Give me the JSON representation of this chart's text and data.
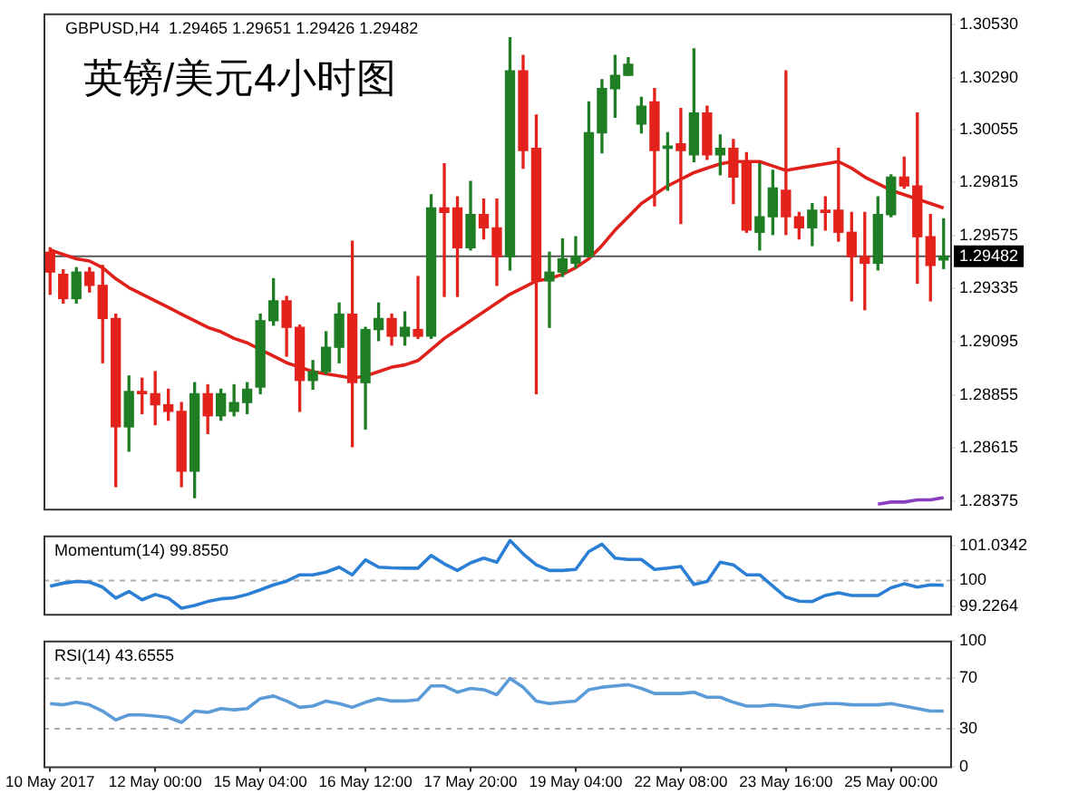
{
  "chart_data": [
    {
      "type": "candlestick",
      "title": "英镑/美元4小时图",
      "subtitle": "GBPUSD,H4  1.29465 1.29651 1.29426 1.29482",
      "tick_labels": "y",
      "ohlc": [
        [
          1.295,
          1.2952,
          1.2931,
          1.2941
        ],
        [
          1.294,
          1.2942,
          1.2927,
          1.2929
        ],
        [
          1.2929,
          1.2943,
          1.2927,
          1.2941
        ],
        [
          1.2941,
          1.2943,
          1.2932,
          1.2935
        ],
        [
          1.2935,
          1.2944,
          1.29,
          1.292
        ],
        [
          1.292,
          1.2922,
          1.2844,
          1.2871
        ],
        [
          1.2871,
          1.2894,
          1.286,
          1.2887
        ],
        [
          1.2887,
          1.2893,
          1.2877,
          1.2886
        ],
        [
          1.2886,
          1.2896,
          1.2872,
          1.2881
        ],
        [
          1.2881,
          1.2888,
          1.2874,
          1.2878
        ],
        [
          1.2878,
          1.2882,
          1.2844,
          1.2851
        ],
        [
          1.2851,
          1.2891,
          1.2839,
          1.2886
        ],
        [
          1.2886,
          1.289,
          1.2868,
          1.2876
        ],
        [
          1.2876,
          1.2888,
          1.2874,
          1.2886
        ],
        [
          1.2878,
          1.289,
          1.2876,
          1.2882
        ],
        [
          1.2882,
          1.2891,
          1.2877,
          1.2888
        ],
        [
          1.2889,
          1.2922,
          1.2886,
          1.2919
        ],
        [
          1.2919,
          1.2938,
          1.2917,
          1.2928
        ],
        [
          1.2928,
          1.293,
          1.2903,
          1.2916
        ],
        [
          1.2916,
          1.2917,
          1.2878,
          1.2892
        ],
        [
          1.2892,
          1.2901,
          1.2888,
          1.2896
        ],
        [
          1.2896,
          1.2914,
          1.2895,
          1.2907
        ],
        [
          1.2907,
          1.2927,
          1.29,
          1.2922
        ],
        [
          1.2922,
          1.2955,
          1.2862,
          1.2891
        ],
        [
          1.2891,
          1.2916,
          1.287,
          1.2915
        ],
        [
          1.2915,
          1.2927,
          1.291,
          1.292
        ],
        [
          1.292,
          1.2922,
          1.2908,
          1.2912
        ],
        [
          1.2912,
          1.2923,
          1.2908,
          1.2916
        ],
        [
          1.2915,
          1.2939,
          1.2911,
          1.2912
        ],
        [
          1.2912,
          1.2976,
          1.2911,
          1.297
        ],
        [
          1.297,
          1.299,
          1.293,
          1.2968
        ],
        [
          1.297,
          1.2975,
          1.293,
          1.2952
        ],
        [
          1.2952,
          1.2982,
          1.2951,
          1.2967
        ],
        [
          1.2967,
          1.2974,
          1.2956,
          1.2961
        ],
        [
          1.2961,
          1.2974,
          1.2935,
          1.2948
        ],
        [
          1.2948,
          1.3047,
          1.2942,
          1.3032
        ],
        [
          1.3032,
          1.3039,
          1.2988,
          1.2996
        ],
        [
          1.2997,
          1.3012,
          1.2886,
          1.2937
        ],
        [
          1.2937,
          1.295,
          1.2916,
          1.2941
        ],
        [
          1.2941,
          1.2956,
          1.2939,
          1.2947
        ],
        [
          1.2945,
          1.2957,
          1.2943,
          1.2948
        ],
        [
          1.2948,
          1.3018,
          1.2948,
          1.3004
        ],
        [
          1.3004,
          1.3028,
          1.2995,
          1.3024
        ],
        [
          1.3024,
          1.3039,
          1.3011,
          1.303
        ],
        [
          1.303,
          1.3038,
          1.303,
          1.3035
        ],
        [
          1.3008,
          1.302,
          1.3004,
          1.3016
        ],
        [
          1.3018,
          1.3024,
          1.2971,
          1.2996
        ],
        [
          1.2997,
          1.3004,
          1.2978,
          1.2998
        ],
        [
          1.2999,
          1.3015,
          1.2963,
          1.2996
        ],
        [
          1.2994,
          1.3042,
          1.2991,
          1.3013
        ],
        [
          1.3013,
          1.3016,
          1.2992,
          1.2994
        ],
        [
          1.2994,
          1.3003,
          1.2985,
          1.2997
        ],
        [
          1.2997,
          1.3001,
          1.2972,
          1.2984
        ],
        [
          1.299,
          1.2995,
          1.2959,
          1.296
        ],
        [
          1.2959,
          1.299,
          1.2951,
          1.2966
        ],
        [
          1.2966,
          1.2987,
          1.2958,
          1.2979
        ],
        [
          1.2978,
          1.3032,
          1.2958,
          1.2966
        ],
        [
          1.2966,
          1.2968,
          1.2956,
          1.2961
        ],
        [
          1.2961,
          1.2972,
          1.2953,
          1.2969
        ],
        [
          1.2969,
          1.2975,
          1.296,
          1.2968
        ],
        [
          1.2969,
          1.2997,
          1.2955,
          1.2959
        ],
        [
          1.2959,
          1.2968,
          1.2928,
          1.2948
        ],
        [
          1.2948,
          1.2968,
          1.2924,
          1.2945
        ],
        [
          1.2945,
          1.2975,
          1.2942,
          1.2967
        ],
        [
          1.2967,
          1.2985,
          1.2966,
          1.2984
        ],
        [
          1.2984,
          1.2993,
          1.2979,
          1.298
        ],
        [
          1.298,
          1.3013,
          1.2936,
          1.2957
        ],
        [
          1.2957,
          1.2967,
          1.2928,
          1.2944
        ],
        [
          1.29465,
          1.29651,
          1.29426,
          1.29482
        ]
      ],
      "colors": [
        "#e3221b",
        "#e3221b",
        "#1f7d24",
        "#e3221b",
        "#e3221b",
        "#e3221b",
        "#1f7d24",
        "#e3221b",
        "#e3221b",
        "#e3221b",
        "#e3221b",
        "#1f7d24",
        "#e3221b",
        "#1f7d24",
        "#1f7d24",
        "#1f7d24",
        "#1f7d24",
        "#1f7d24",
        "#e3221b",
        "#e3221b",
        "#1f7d24",
        "#1f7d24",
        "#1f7d24",
        "#e3221b",
        "#1f7d24",
        "#1f7d24",
        "#e3221b",
        "#1f7d24",
        "#e3221b",
        "#1f7d24",
        "#e3221b",
        "#e3221b",
        "#1f7d24",
        "#e3221b",
        "#e3221b",
        "#1f7d24",
        "#e3221b",
        "#e3221b",
        "#1f7d24",
        "#1f7d24",
        "#1f7d24",
        "#1f7d24",
        "#1f7d24",
        "#1f7d24",
        "#1f7d24",
        "#1f7d24",
        "#e3221b",
        "#1f7d24",
        "#e3221b",
        "#1f7d24",
        "#e3221b",
        "#1f7d24",
        "#e3221b",
        "#e3221b",
        "#1f7d24",
        "#1f7d24",
        "#e3221b",
        "#e3221b",
        "#1f7d24",
        "#e3221b",
        "#e3221b",
        "#e3221b",
        "#e3221b",
        "#1f7d24",
        "#1f7d24",
        "#e3221b",
        "#e3221b",
        "#e3221b",
        "#1f7d24"
      ],
      "series": [
        {
          "type": "line",
          "color": "#e0201a",
          "values": [
            1.2951,
            1.2949,
            1.2947,
            1.2946,
            1.2943,
            1.2938,
            1.2934,
            1.2931,
            1.2928,
            1.2925,
            1.2922,
            1.2919,
            1.2916,
            1.2914,
            1.2911,
            1.2909,
            1.2906,
            1.2903,
            1.29,
            1.2898,
            1.2896,
            1.2895,
            1.2894,
            1.2893,
            1.2894,
            1.2896,
            1.2898,
            1.2899,
            1.2901,
            1.2906,
            1.2911,
            1.2915,
            1.2919,
            1.2923,
            1.2927,
            1.2931,
            1.2934,
            1.2937,
            1.2938,
            1.294,
            1.2943,
            1.2947,
            1.2953,
            1.296,
            1.2966,
            1.2972,
            1.2976,
            1.298,
            1.2983,
            1.2986,
            1.2988,
            1.299,
            1.2991,
            1.2991,
            1.2991,
            1.2989,
            1.2987,
            1.2988,
            1.2989,
            1.299,
            1.2991,
            1.2988,
            1.2984,
            1.2981,
            1.2978,
            1.2976,
            1.2974,
            1.2972,
            1.297
          ]
        },
        {
          "type": "line",
          "color": "#8a3fc0",
          "values": [
            null,
            null,
            null,
            null,
            null,
            null,
            null,
            null,
            null,
            null,
            null,
            null,
            null,
            null,
            null,
            null,
            null,
            null,
            null,
            null,
            null,
            null,
            null,
            null,
            null,
            null,
            null,
            null,
            null,
            null,
            null,
            null,
            null,
            null,
            null,
            null,
            null,
            null,
            null,
            null,
            null,
            null,
            null,
            null,
            null,
            null,
            null,
            null,
            null,
            null,
            null,
            null,
            null,
            null,
            null,
            null,
            null,
            null,
            null,
            null,
            null,
            null,
            null,
            1.2836,
            1.2837,
            1.2837,
            1.2838,
            1.2838,
            1.2839
          ]
        }
      ],
      "ylim": [
        1.2834,
        1.3058
      ],
      "yticks": [
        {
          "value": 1.3053,
          "label": "1.30530"
        },
        {
          "value": 1.3029,
          "label": "1.30290"
        },
        1.30055,
        1.29815,
        1.29575,
        1.29335,
        1.29095,
        1.28855,
        1.28615,
        1.28375
      ],
      "ref_lines": [
        {
          "axis": "y",
          "value": 1.29482,
          "label": "1.29482",
          "color": "#555555"
        }
      ]
    },
    {
      "type": "line",
      "title": "Momentum(14) 99.8550",
      "tick_labels": "y",
      "color": "#2b7fd4",
      "values": [
        99.83,
        99.92,
        99.97,
        99.95,
        99.8,
        99.47,
        99.67,
        99.42,
        99.58,
        99.47,
        99.17,
        99.25,
        99.37,
        99.45,
        99.48,
        99.58,
        99.72,
        99.87,
        99.98,
        100.17,
        100.17,
        100.25,
        100.4,
        100.17,
        100.62,
        100.4,
        100.38,
        100.37,
        100.37,
        100.75,
        100.5,
        100.3,
        100.53,
        100.67,
        100.55,
        101.2,
        100.8,
        100.47,
        100.3,
        100.3,
        100.33,
        100.87,
        101.09,
        100.67,
        100.63,
        100.63,
        100.33,
        100.37,
        100.42,
        99.88,
        99.97,
        100.55,
        100.47,
        100.17,
        100.17,
        99.83,
        99.5,
        99.38,
        99.37,
        99.55,
        99.63,
        99.55,
        99.55,
        99.55,
        99.78,
        99.9,
        99.8,
        99.87,
        99.86
      ],
      "ylim": [
        99.0,
        101.35
      ],
      "yticks": [
        101.0342,
        100,
        99.2264
      ],
      "ref_lines": [
        {
          "axis": "y",
          "value": 100,
          "color": "#b0b0b0",
          "line_style": "dashed"
        }
      ]
    },
    {
      "type": "line",
      "title": "RSI(14) 43.6555",
      "categories": [
        "10 May 2017",
        null,
        null,
        null,
        null,
        null,
        null,
        null,
        "12 May 00:00",
        null,
        null,
        null,
        null,
        null,
        null,
        null,
        "15 May 04:00",
        null,
        null,
        null,
        null,
        null,
        null,
        null,
        "16 May 12:00",
        null,
        null,
        null,
        null,
        null,
        null,
        null,
        "17 May 20:00",
        null,
        null,
        null,
        null,
        null,
        null,
        null,
        "19 May 04:00",
        null,
        null,
        null,
        null,
        null,
        null,
        null,
        "22 May 08:00",
        null,
        null,
        null,
        null,
        null,
        null,
        null,
        "23 May 16:00",
        null,
        null,
        null,
        null,
        null,
        null,
        null,
        "25 May 00:00",
        null,
        null,
        null,
        null
      ],
      "color": "#5b9bd8",
      "values": [
        50,
        49,
        51,
        49,
        44,
        37,
        41,
        41,
        40,
        39,
        35,
        44,
        43,
        46,
        45,
        46,
        54,
        56,
        52,
        47,
        48,
        52,
        50,
        47,
        51,
        54,
        52,
        52,
        53,
        64,
        64,
        59,
        62,
        61,
        57,
        70,
        63,
        52,
        50,
        51,
        52,
        61,
        63,
        64,
        65,
        62,
        58,
        58,
        58,
        59,
        55,
        55,
        51,
        48,
        48,
        49,
        48,
        47,
        49,
        50,
        50,
        49,
        49,
        49,
        50,
        48,
        46,
        44,
        44
      ],
      "ylim": [
        0,
        100
      ],
      "yticks": [
        100,
        70,
        30,
        0
      ],
      "ref_lines": [
        {
          "axis": "y",
          "value": 70,
          "color": "#b0b0b0",
          "line_style": "dashed"
        },
        {
          "axis": "y",
          "value": 30,
          "color": "#b0b0b0",
          "line_style": "dashed"
        }
      ]
    }
  ]
}
